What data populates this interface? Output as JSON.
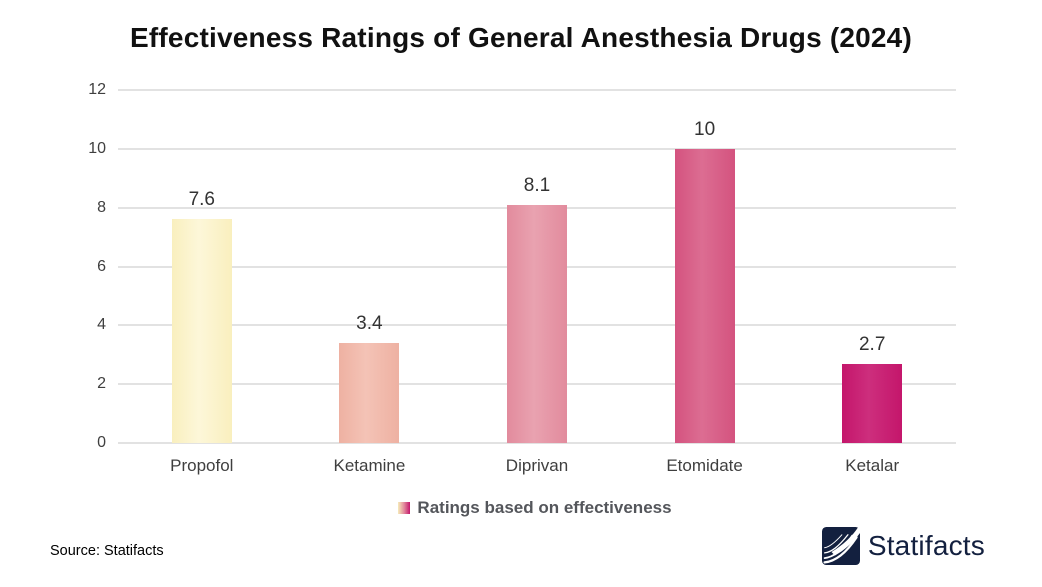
{
  "title": "Effectiveness Ratings of General Anesthesia Drugs (2024)",
  "chart_data": {
    "type": "bar",
    "title": "Effectiveness Ratings of General Anesthesia Drugs (2024)",
    "categories": [
      "Propofol",
      "Ketamine",
      "Diprivan",
      "Etomidate",
      "Ketalar"
    ],
    "values": [
      7.6,
      3.4,
      8.1,
      10,
      2.7
    ],
    "value_labels": [
      "7.6",
      "3.4",
      "8.1",
      "10",
      "2.7"
    ],
    "bar_colors": [
      "#f9efbe",
      "#eeb1a2",
      "#e28b9d",
      "#d4537f",
      "#c4166b"
    ],
    "bar_colors_light": [
      "#fdf7d9",
      "#f4c3b6",
      "#e9a2b0",
      "#dc6d92",
      "#cd2e7d"
    ],
    "xlabel": "",
    "ylabel": "",
    "ylim": [
      0,
      12
    ],
    "yticks": [
      0,
      2,
      4,
      6,
      8,
      10,
      12
    ],
    "grid": true,
    "legend": {
      "label": "Ratings based on effectiveness",
      "position": "bottom",
      "swatch_gradient": [
        "#f6ecba",
        "#e28b9d",
        "#c4166b"
      ]
    }
  },
  "footer": {
    "source": "Source: Statifacts",
    "brand": "Statifacts"
  },
  "colors": {
    "background": "#ffffff",
    "grid": "#e2e2e2",
    "title_text": "#111111",
    "tick_text": "#3f3f3f",
    "value_text": "#333333",
    "legend_text": "#54565b",
    "brand_navy": "#13203f"
  }
}
